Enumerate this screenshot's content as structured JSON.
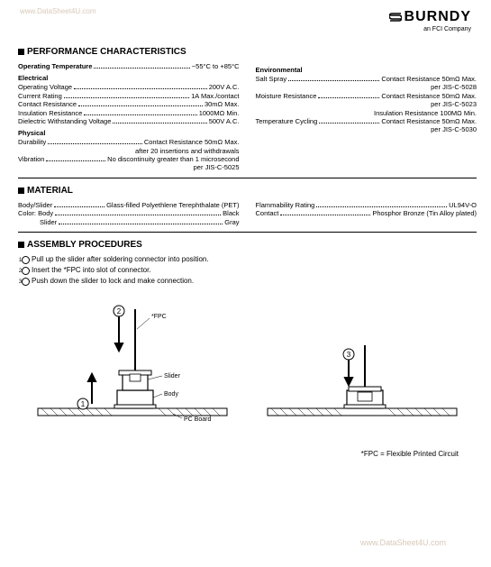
{
  "watermark_top": "www.DataSheet4U.com",
  "watermark_bottom": "www.DataSheet4U.com",
  "brand": {
    "name": "BURNDY",
    "tagline": "an FCI Company"
  },
  "sections": {
    "performance": {
      "title": "PERFORMANCE CHARACTERISTICS",
      "operating_temp": {
        "label": "Operating Temperature",
        "value": "−55°C to +85°C"
      },
      "electrical": {
        "heading": "Electrical",
        "rows": [
          {
            "label": "Operating Voltage",
            "value": "200V A.C."
          },
          {
            "label": "Current Rating",
            "value": "1A Max./contact"
          },
          {
            "label": "Contact Resistance",
            "value": "30mΩ Max."
          },
          {
            "label": "Insulation Resistance",
            "value": "1000MΩ Min."
          },
          {
            "label": "Dielectric Withstanding Voltage",
            "value": "500V A.C."
          }
        ]
      },
      "physical": {
        "heading": "Physical",
        "durability": {
          "label": "Durability",
          "value": "Contact Resistance 50mΩ Max.",
          "sub1": "after 20 insertions and withdrawals"
        },
        "vibration": {
          "label": "Vibration",
          "value": "No discontinuity greater than 1 microsecond",
          "sub1": "per JIS-C-5025"
        }
      },
      "environmental": {
        "heading": "Environmental",
        "rows": [
          {
            "label": "Salt Spray",
            "value": "Contact Resistance 50mΩ Max.",
            "sub": "per JIS-C-5028"
          },
          {
            "label": "Moisture Resistance",
            "value": "Contact Resistance 50mΩ Max.",
            "sub": "per JIS-C-5023"
          },
          {
            "label": "",
            "value": "Insulation Resistance 100MΩ Min.",
            "sub": ""
          },
          {
            "label": "Temperature Cycling",
            "value": "Contact Resistance 50mΩ Max.",
            "sub": "per JIS-C-5030"
          }
        ]
      }
    },
    "material": {
      "title": "MATERIAL",
      "left": [
        {
          "label": "Body/Slider",
          "value": "Glass-filled Polyethlene Terephthalate (PET)"
        },
        {
          "label": "Color: Body",
          "value": "Black"
        },
        {
          "label": "Slider",
          "value": "Gray",
          "indent": true
        }
      ],
      "right": [
        {
          "label": "Flammability Rating",
          "value": "UL94V-O"
        },
        {
          "label": "Contact",
          "value": "Phosphor Bronze (Tin Alloy plated)"
        }
      ]
    },
    "assembly": {
      "title": "ASSEMBLY PROCEDURES",
      "steps": [
        "Pull up the slider after soldering connector into position.",
        "Insert the *FPC into slot of connector.",
        "Push down the slider to lock and make connection."
      ]
    }
  },
  "diagram_labels": {
    "fpc": "*FPC",
    "slider": "Slider",
    "body": "Body",
    "pcb": "PC Board"
  },
  "footnote": "*FPC = Flexible Printed Circuit"
}
